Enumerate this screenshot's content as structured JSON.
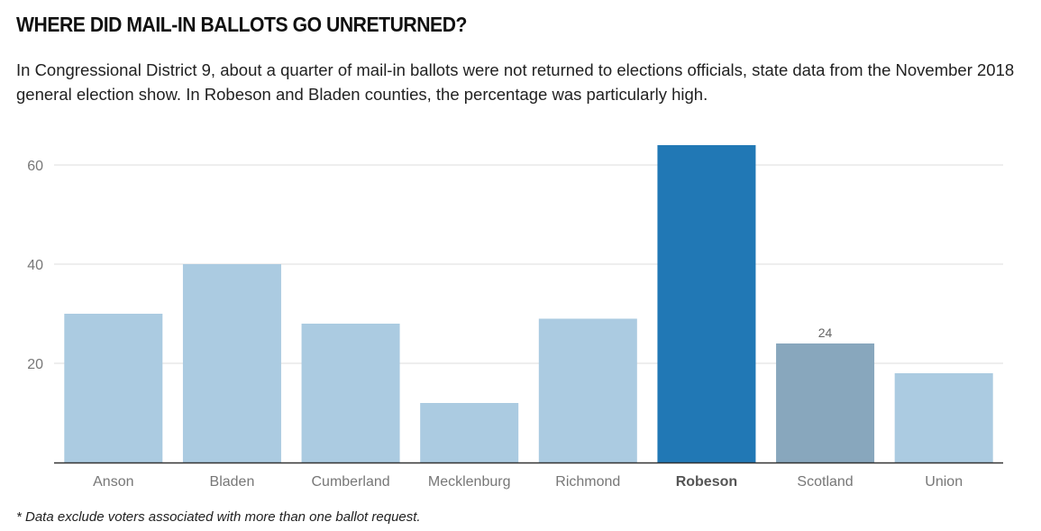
{
  "header": {
    "title": "WHERE DID MAIL-IN BALLOTS GO UNRETURNED?",
    "subtitle": "In Congressional District 9, about a quarter of mail-in ballots were not returned to elections officials, state data from the November 2018 general election show. In Robeson and Bladen counties, the percentage was particularly high."
  },
  "footnote": "* Data exclude voters associated with more than one ballot request.",
  "colors": {
    "default_bar": "#abcbe1",
    "highlight_bar": "#2178b5",
    "annotated_bar": "#88a7bd",
    "gridline": "#dddddd",
    "axis": "#333333",
    "tick_text": "#777777",
    "highlight_text": "#555555"
  },
  "chart_data": {
    "type": "bar",
    "title": "WHERE DID MAIL-IN BALLOTS GO UNRETURNED?",
    "xlabel": "",
    "ylabel": "",
    "ylim": [
      0,
      60
    ],
    "yticks": [
      20,
      40,
      60
    ],
    "grid": true,
    "categories": [
      "Anson",
      "Bladen",
      "Cumberland",
      "Mecklenburg",
      "Richmond",
      "Robeson",
      "Scotland",
      "Union"
    ],
    "values": [
      30,
      40,
      28,
      12,
      29,
      64,
      24,
      18
    ],
    "styles": [
      "default",
      "default",
      "default",
      "default",
      "default",
      "highlight",
      "annotated",
      "default"
    ],
    "data_labels": [
      null,
      null,
      null,
      null,
      null,
      null,
      "24",
      null
    ]
  }
}
